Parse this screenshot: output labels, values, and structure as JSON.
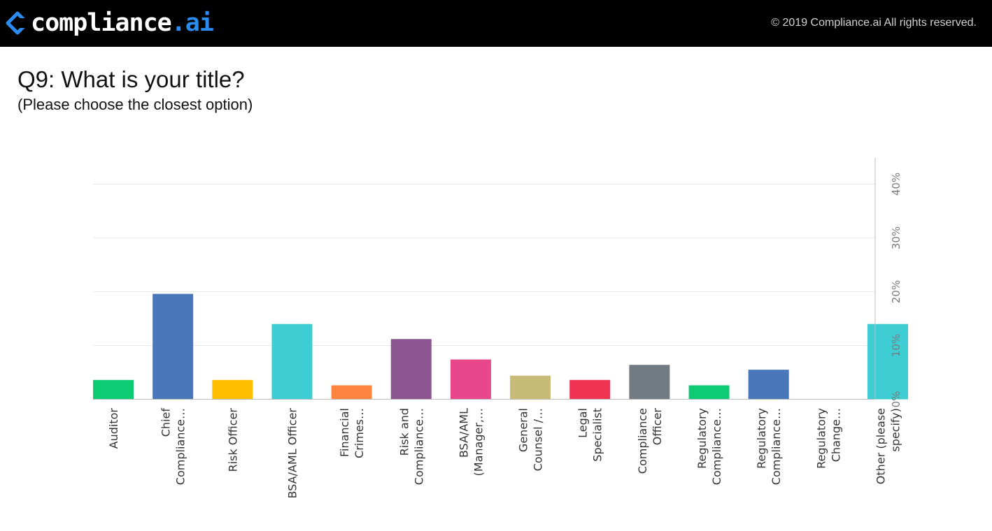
{
  "header": {
    "logo": {
      "icon": "compliance-ai-chevron-icon",
      "text_main": "compliance",
      "text_accent": ".ai",
      "accent_color": "#2a8cf0"
    },
    "copyright": "© 2019 Compliance.ai All rights reserved."
  },
  "question": {
    "title": "Q9: What is your title?",
    "subtitle": "(Please choose the closest option)"
  },
  "chart_data": {
    "type": "bar",
    "title": "",
    "xlabel": "",
    "ylabel": "",
    "ylim": [
      0,
      45
    ],
    "y_ticks": [
      0,
      10,
      20,
      30,
      40
    ],
    "y_tick_labels": [
      "0%",
      "10%",
      "20%",
      "30%",
      "40%"
    ],
    "y_axis_side": "right",
    "grid": true,
    "legend": "none",
    "categories": [
      [
        "Auditor"
      ],
      [
        "Chief",
        "Compliance…"
      ],
      [
        "Risk Officer"
      ],
      [
        "BSA/AML Officer"
      ],
      [
        "Financial",
        "Crimes…"
      ],
      [
        "Risk and",
        "Compliance…"
      ],
      [
        "BSA/AML",
        "(Manager,…"
      ],
      [
        "General",
        "Counsel /…"
      ],
      [
        "Legal",
        "Specialist"
      ],
      [
        "Compliance",
        "Officer"
      ],
      [
        "Regulatory",
        "Compliance…"
      ],
      [
        "Regulatory",
        "Compliance…"
      ],
      [
        "Regulatory",
        "Change…"
      ],
      [
        "Other (please",
        "specify)"
      ]
    ],
    "values": [
      3.6,
      19.6,
      3.6,
      14.0,
      2.6,
      11.2,
      7.4,
      4.4,
      3.6,
      6.4,
      2.6,
      5.5,
      0,
      14.0
    ],
    "colors": [
      "#0dcb73",
      "#4a77b9",
      "#ffbf00",
      "#3ecdd2",
      "#fd8540",
      "#8b568f",
      "#e8478b",
      "#c8bb78",
      "#ef3152",
      "#707b83",
      "#0dcb73",
      "#4a77b9",
      "#3ecdd2",
      "#3ecdd2"
    ]
  }
}
